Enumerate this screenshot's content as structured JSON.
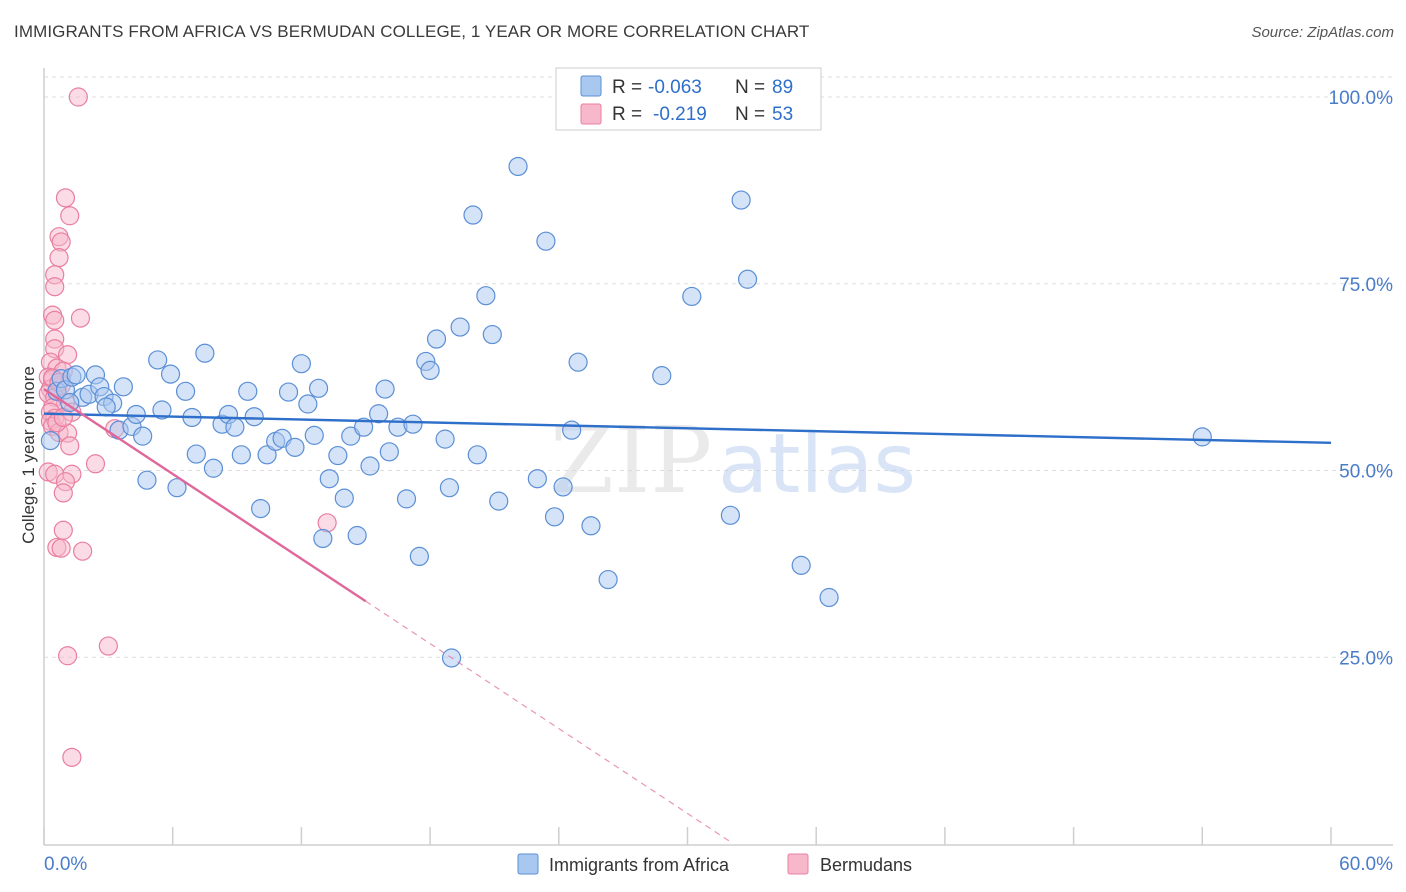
{
  "chart_data": {
    "type": "scatter",
    "title": "IMMIGRANTS FROM AFRICA VS BERMUDAN COLLEGE, 1 YEAR OR MORE CORRELATION CHART",
    "source": "Source: ZipAtlas.com",
    "ylabel": "College, 1 year or more",
    "xlabel": "",
    "xlim": [
      0,
      60
    ],
    "ylim": [
      0,
      103
    ],
    "x_tick_labels": [
      "0.0%",
      "60.0%"
    ],
    "y_tick_labels": [
      "100.0%",
      "75.0%",
      "50.0%",
      "25.0%"
    ],
    "y_ticks": [
      100,
      75,
      50,
      25
    ],
    "watermark": [
      "ZIP",
      "atlas"
    ],
    "colors": {
      "blue_fill": "#a9c8ef",
      "blue_stroke": "#5b8fd6",
      "blue_line": "#2e6fc9",
      "pink_fill": "#f7b8cb",
      "pink_stroke": "#e97fa0",
      "pink_line": "#e0679a",
      "tick_text": "#4a7cc9",
      "grid": "#dddddd"
    },
    "legend": [
      {
        "name": "Immigrants from Africa",
        "r_label": "R =",
        "r": "-0.063",
        "n_label": "N =",
        "n": "89"
      },
      {
        "name": "Bermudans",
        "r_label": "R =",
        "r": "-0.219",
        "n_label": "N =",
        "n": "53"
      }
    ],
    "series": [
      {
        "name": "Immigrants from Africa",
        "trend": {
          "x0": 0,
          "y0": 57.6,
          "x1": 60,
          "y1": 53.7
        },
        "points": [
          [
            0.3,
            54.0
          ],
          [
            0.6,
            60.6
          ],
          [
            0.8,
            62.3
          ],
          [
            1.0,
            60.8
          ],
          [
            1.3,
            62.5
          ],
          [
            1.5,
            62.8
          ],
          [
            1.8,
            59.8
          ],
          [
            2.1,
            60.2
          ],
          [
            2.4,
            62.8
          ],
          [
            2.6,
            61.2
          ],
          [
            2.8,
            59.9
          ],
          [
            3.2,
            59.0
          ],
          [
            3.5,
            55.4
          ],
          [
            3.7,
            61.2
          ],
          [
            4.1,
            55.9
          ],
          [
            4.3,
            57.5
          ],
          [
            4.6,
            54.6
          ],
          [
            4.8,
            48.7
          ],
          [
            5.3,
            64.8
          ],
          [
            5.5,
            58.1
          ],
          [
            5.9,
            62.9
          ],
          [
            6.2,
            47.7
          ],
          [
            6.6,
            60.6
          ],
          [
            6.9,
            57.1
          ],
          [
            7.1,
            52.2
          ],
          [
            7.5,
            65.7
          ],
          [
            7.9,
            50.3
          ],
          [
            8.3,
            56.2
          ],
          [
            8.6,
            57.5
          ],
          [
            8.9,
            55.8
          ],
          [
            9.2,
            52.1
          ],
          [
            9.5,
            60.6
          ],
          [
            9.8,
            57.2
          ],
          [
            10.1,
            44.9
          ],
          [
            10.4,
            52.1
          ],
          [
            10.8,
            53.9
          ],
          [
            11.1,
            54.3
          ],
          [
            11.4,
            60.5
          ],
          [
            11.7,
            53.1
          ],
          [
            12.0,
            64.3
          ],
          [
            12.3,
            58.9
          ],
          [
            12.6,
            54.7
          ],
          [
            12.8,
            61.0
          ],
          [
            13.0,
            40.9
          ],
          [
            13.3,
            48.9
          ],
          [
            13.7,
            52.0
          ],
          [
            14.0,
            46.3
          ],
          [
            14.3,
            54.6
          ],
          [
            14.6,
            41.3
          ],
          [
            14.9,
            55.8
          ],
          [
            15.2,
            50.6
          ],
          [
            15.6,
            57.6
          ],
          [
            15.9,
            60.9
          ],
          [
            16.1,
            52.5
          ],
          [
            16.5,
            55.8
          ],
          [
            16.9,
            46.2
          ],
          [
            17.2,
            56.2
          ],
          [
            17.5,
            38.5
          ],
          [
            17.8,
            64.6
          ],
          [
            18.0,
            63.4
          ],
          [
            18.3,
            67.6
          ],
          [
            18.7,
            54.2
          ],
          [
            18.9,
            47.7
          ],
          [
            19.4,
            69.2
          ],
          [
            20.0,
            84.2
          ],
          [
            20.2,
            52.1
          ],
          [
            20.6,
            73.4
          ],
          [
            20.9,
            68.2
          ],
          [
            21.2,
            45.9
          ],
          [
            22.1,
            90.7
          ],
          [
            23.0,
            48.9
          ],
          [
            23.4,
            80.7
          ],
          [
            23.8,
            43.8
          ],
          [
            24.2,
            47.8
          ],
          [
            24.6,
            55.4
          ],
          [
            24.9,
            64.5
          ],
          [
            25.5,
            42.6
          ],
          [
            26.3,
            35.4
          ],
          [
            19.0,
            24.9
          ],
          [
            28.8,
            62.7
          ],
          [
            30.2,
            73.3
          ],
          [
            32.0,
            44.0
          ],
          [
            32.5,
            86.2
          ],
          [
            32.8,
            75.6
          ],
          [
            35.3,
            37.3
          ],
          [
            36.6,
            33.0
          ],
          [
            54.0,
            54.5
          ],
          [
            2.9,
            58.5
          ],
          [
            1.2,
            59.1
          ]
        ]
      },
      {
        "name": "Bermudans",
        "trend": {
          "x0": 0,
          "y0": 60.9,
          "x1": 15.0,
          "y1": 32.5,
          "dash_x1": 32.0,
          "dash_y1": 0.3
        },
        "points": [
          [
            1.6,
            100.0
          ],
          [
            1.0,
            86.5
          ],
          [
            1.2,
            84.1
          ],
          [
            0.7,
            81.3
          ],
          [
            0.8,
            80.6
          ],
          [
            0.7,
            78.5
          ],
          [
            0.5,
            76.2
          ],
          [
            0.5,
            74.6
          ],
          [
            0.4,
            70.8
          ],
          [
            0.5,
            70.1
          ],
          [
            1.7,
            70.4
          ],
          [
            0.5,
            67.6
          ],
          [
            0.5,
            66.3
          ],
          [
            1.1,
            65.5
          ],
          [
            0.3,
            64.5
          ],
          [
            0.6,
            63.7
          ],
          [
            0.9,
            63.3
          ],
          [
            0.2,
            62.5
          ],
          [
            0.4,
            62.2
          ],
          [
            0.8,
            61.4
          ],
          [
            0.3,
            60.9
          ],
          [
            0.6,
            60.6
          ],
          [
            0.2,
            60.3
          ],
          [
            0.5,
            59.8
          ],
          [
            1.0,
            59.1
          ],
          [
            0.4,
            58.4
          ],
          [
            0.3,
            57.8
          ],
          [
            1.3,
            57.8
          ],
          [
            0.5,
            57.0
          ],
          [
            0.3,
            56.6
          ],
          [
            0.4,
            55.9
          ],
          [
            3.3,
            55.6
          ],
          [
            0.7,
            55.1
          ],
          [
            1.1,
            55.0
          ],
          [
            1.2,
            53.3
          ],
          [
            2.4,
            50.9
          ],
          [
            0.2,
            49.8
          ],
          [
            0.5,
            49.5
          ],
          [
            1.3,
            49.5
          ],
          [
            1.0,
            48.5
          ],
          [
            0.9,
            47.0
          ],
          [
            13.2,
            43.0
          ],
          [
            0.9,
            42.0
          ],
          [
            0.6,
            39.7
          ],
          [
            0.8,
            39.6
          ],
          [
            1.8,
            39.2
          ],
          [
            3.0,
            26.5
          ],
          [
            1.1,
            25.2
          ],
          [
            1.3,
            11.6
          ],
          [
            0.4,
            62.4
          ],
          [
            0.7,
            61.8
          ],
          [
            0.6,
            56.4
          ],
          [
            0.9,
            57.1
          ]
        ]
      }
    ]
  }
}
